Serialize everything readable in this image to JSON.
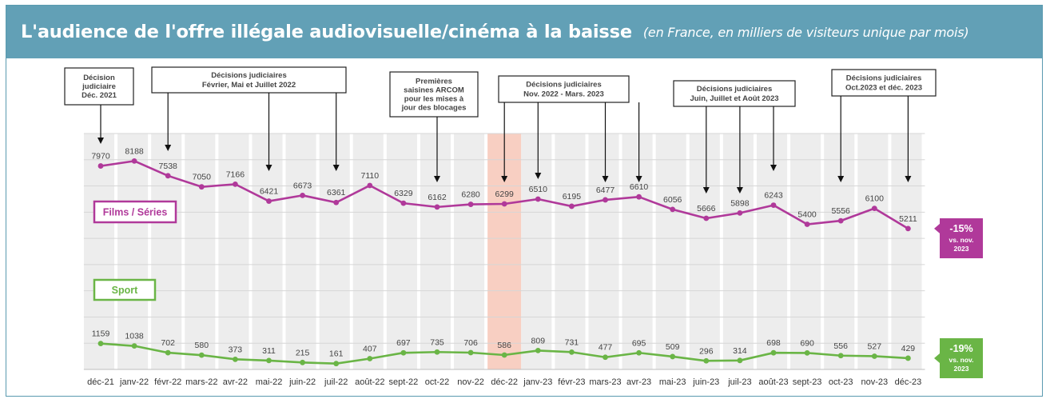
{
  "header": {
    "title": "L'audience de l'offre illégale audiovisuelle/cinéma à la baisse",
    "subtitle": "(en France, en milliers de visiteurs unique par mois)"
  },
  "chart_data": {
    "type": "line",
    "categories": [
      "déc-21",
      "janv-22",
      "févr-22",
      "mars-22",
      "avr-22",
      "mai-22",
      "juin-22",
      "juil-22",
      "août-22",
      "sept-22",
      "oct-22",
      "nov-22",
      "déc-22",
      "janv-23",
      "févr-23",
      "mars-23",
      "avr-23",
      "mai-23",
      "juin-23",
      "juil-23",
      "août-23",
      "sept-23",
      "oct-23",
      "nov-23",
      "déc-23"
    ],
    "series": [
      {
        "name": "Films / Séries",
        "color": "#b0399a",
        "values": [
          7970,
          8188,
          7538,
          7050,
          7166,
          6421,
          6673,
          6361,
          7110,
          6329,
          6162,
          6280,
          6299,
          6510,
          6195,
          6477,
          6610,
          6056,
          5666,
          5898,
          6243,
          5400,
          5556,
          6100,
          5211
        ],
        "badge": {
          "pct": "-15%",
          "line1": "vs. nov.",
          "line2": "2023"
        }
      },
      {
        "name": "Sport",
        "color": "#6ab546",
        "values": [
          1159,
          1038,
          702,
          580,
          373,
          311,
          215,
          161,
          407,
          697,
          735,
          706,
          586,
          809,
          731,
          477,
          695,
          509,
          296,
          314,
          698,
          690,
          556,
          527,
          429
        ],
        "badge": {
          "pct": "-19%",
          "line1": "vs. nov.",
          "line2": "2023"
        }
      }
    ],
    "highlight_category": "déc-22",
    "highlight_color": "#f8cfc2",
    "annotations": [
      {
        "lines": [
          "Décision",
          "judiciaire",
          "Déc. 2021"
        ],
        "targets": [
          "déc-21"
        ]
      },
      {
        "lines": [
          "Décisions judiciaires",
          "Février, Mai et Juillet 2022"
        ],
        "targets": [
          "févr-22",
          "mai-22",
          "juil-22"
        ]
      },
      {
        "lines": [
          "Premières",
          "saisines ARCOM",
          "pour les mises à",
          "jour des blocages"
        ],
        "targets": [
          "oct-22"
        ]
      },
      {
        "lines": [
          "Décisions judiciaires",
          "Nov. 2022  - Mars. 2023"
        ],
        "targets": [
          "déc-22",
          "janv-23",
          "mars-23",
          "avr-23"
        ]
      },
      {
        "lines": [
          "Décisions judiciaires",
          "Juin, Juillet et Août 2023"
        ],
        "targets": [
          "juin-23",
          "juil-23",
          "août-23"
        ]
      },
      {
        "lines": [
          "Décisions judiciaires",
          "Oct.2023 et déc. 2023"
        ],
        "targets": [
          "oct-23",
          "déc-23"
        ]
      }
    ]
  }
}
